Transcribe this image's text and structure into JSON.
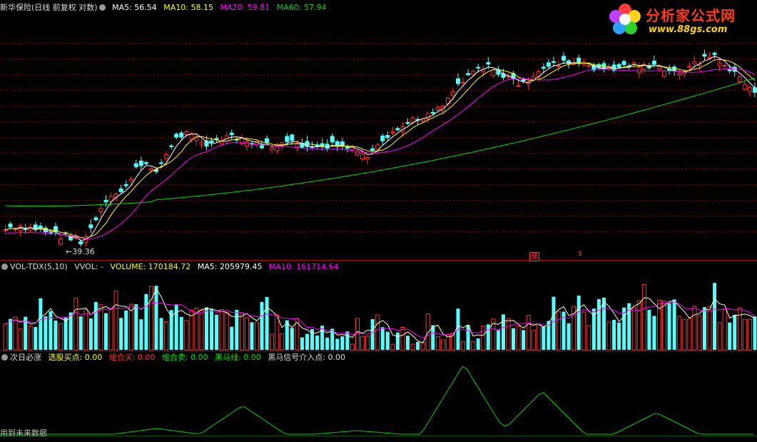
{
  "header": {
    "title": "新华保险(日线 前复权 对数)",
    "ma5": "MA5: 56.54",
    "ma10": "MA10: 58.15",
    "ma20": "MA20: 59.81",
    "ma60": "MA60: 57.94"
  },
  "logo": {
    "name": "分析家公式网",
    "url": "www.88gs.com"
  },
  "price_low_label": "←39.36",
  "volume_header": {
    "title": "VOL-TDX(5,10)",
    "vvol": "VVOL: -",
    "volume": "VOLUME: 170184.72",
    "ma5": "MA5: 205979.45",
    "ma10": "MA10: 161714.64"
  },
  "indicator_header": {
    "title": "次日必涨",
    "xg": "选股买点: 0.00",
    "zhm": "组合买: 0.00",
    "zhs": "组合卖: 0.00",
    "hmx": "黑马线: 0.00",
    "hmxh": "黑马信号介入点: 0.00"
  },
  "markers": {
    "zhang": "涨",
    "sell": "$"
  },
  "future_label": "用到未来数据",
  "colors": {
    "up": "#ff3232",
    "down": "#54ffff",
    "ma5": "#ffffff",
    "ma10": "#ffff00",
    "ma20": "#ff00ff",
    "ma60": "#00e000",
    "indicator": "#00d000"
  },
  "chart_data": [
    {
      "type": "candlestick",
      "title": "新华保险(日线 前复权 对数)",
      "ylim": [
        38,
        80
      ],
      "low_label": 39.36,
      "series": [
        {
          "name": "MA5"
        },
        {
          "name": "MA10"
        },
        {
          "name": "MA20"
        },
        {
          "name": "MA60"
        }
      ]
    },
    {
      "type": "bar",
      "title": "VOL-TDX(5,10)",
      "series": [
        {
          "name": "VOLUME",
          "last": 170184.72
        },
        {
          "name": "MA5",
          "last": 205979.45
        },
        {
          "name": "MA10",
          "last": 161714.64
        }
      ]
    },
    {
      "type": "line",
      "title": "次日必涨"
    }
  ]
}
